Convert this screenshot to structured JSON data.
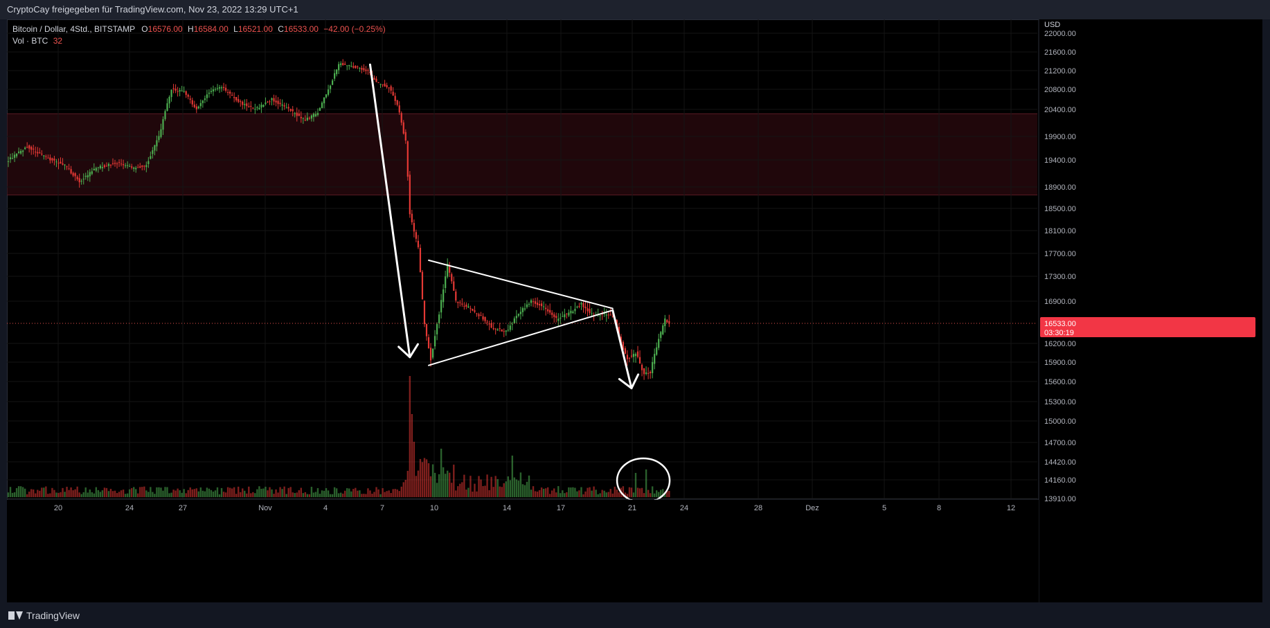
{
  "header": {
    "publish_line": "CryptoCay freigegeben für TradingView.com, Nov 23, 2022 13:29 UTC+1"
  },
  "legend": {
    "symbol": "Bitcoin / Dollar, 4Std., BITSTAMP",
    "open_label": "O",
    "open": "16576.00",
    "high_label": "H",
    "high": "16584.00",
    "low_label": "L",
    "low": "16521.00",
    "close_label": "C",
    "close": "16533.00",
    "change": "−42.00 (−0.25%)",
    "volume_label": "Vol · BTC",
    "volume_value": "32"
  },
  "footer": {
    "brand": "TradingView"
  },
  "colors": {
    "up": "#26a69a",
    "down": "#ef5350",
    "up_candle": "#4caf50",
    "down_candle": "#e53935",
    "zone": "#3b0d14",
    "price_tag": "#f23645",
    "drawing": "#ffffff"
  },
  "chart_data": {
    "type": "candlestick",
    "currency_label": "USD",
    "price_ticks": [
      "22000.00",
      "21600.00",
      "21200.00",
      "20800.00",
      "20400.00",
      "19900.00",
      "19400.00",
      "18900.00",
      "18500.00",
      "18100.00",
      "17700.00",
      "17300.00",
      "16900.00",
      "16200.00",
      "15900.00",
      "15600.00",
      "15300.00",
      "15000.00",
      "14700.00",
      "14420.00",
      "14160.00",
      "13910.00"
    ],
    "time_ticks": [
      "20",
      "24",
      "27",
      "Nov",
      "4",
      "7",
      "10",
      "14",
      "17",
      "21",
      "24",
      "28",
      "Dez",
      "5",
      "8",
      "12"
    ],
    "last_price": "16533.00",
    "countdown": "03:30:19",
    "resistance_zone": {
      "from": 18750,
      "to": 20320
    },
    "anchors": [
      {
        "t": 0,
        "p": 19400
      },
      {
        "t": 9,
        "p": 19680
      },
      {
        "t": 18,
        "p": 19450
      },
      {
        "t": 27,
        "p": 19300
      },
      {
        "t": 34,
        "p": 19000
      },
      {
        "t": 42,
        "p": 19250
      },
      {
        "t": 52,
        "p": 19350
      },
      {
        "t": 60,
        "p": 19250
      },
      {
        "t": 66,
        "p": 19300
      },
      {
        "t": 72,
        "p": 19900
      },
      {
        "t": 78,
        "p": 20800
      },
      {
        "t": 84,
        "p": 20750
      },
      {
        "t": 90,
        "p": 20400
      },
      {
        "t": 96,
        "p": 20750
      },
      {
        "t": 102,
        "p": 20850
      },
      {
        "t": 110,
        "p": 20550
      },
      {
        "t": 118,
        "p": 20400
      },
      {
        "t": 126,
        "p": 20600
      },
      {
        "t": 134,
        "p": 20400
      },
      {
        "t": 142,
        "p": 20200
      },
      {
        "t": 148,
        "p": 20350
      },
      {
        "t": 154,
        "p": 20900
      },
      {
        "t": 158,
        "p": 21350
      },
      {
        "t": 164,
        "p": 21300
      },
      {
        "t": 172,
        "p": 21200
      },
      {
        "t": 176,
        "p": 20950
      },
      {
        "t": 182,
        "p": 20850
      },
      {
        "t": 186,
        "p": 20500
      },
      {
        "t": 190,
        "p": 19800
      },
      {
        "t": 192,
        "p": 18400
      },
      {
        "t": 196,
        "p": 17800
      },
      {
        "t": 199,
        "p": 16500
      },
      {
        "t": 202,
        "p": 15950
      },
      {
        "t": 206,
        "p": 16700
      },
      {
        "t": 210,
        "p": 17500
      },
      {
        "t": 214,
        "p": 16900
      },
      {
        "t": 220,
        "p": 16800
      },
      {
        "t": 226,
        "p": 16650
      },
      {
        "t": 232,
        "p": 16450
      },
      {
        "t": 238,
        "p": 16400
      },
      {
        "t": 244,
        "p": 16700
      },
      {
        "t": 250,
        "p": 16900
      },
      {
        "t": 256,
        "p": 16800
      },
      {
        "t": 262,
        "p": 16600
      },
      {
        "t": 268,
        "p": 16700
      },
      {
        "t": 274,
        "p": 16850
      },
      {
        "t": 280,
        "p": 16650
      },
      {
        "t": 286,
        "p": 16700
      },
      {
        "t": 290,
        "p": 16600
      },
      {
        "t": 293,
        "p": 16200
      },
      {
        "t": 296,
        "p": 15950
      },
      {
        "t": 300,
        "p": 16050
      },
      {
        "t": 304,
        "p": 15700
      },
      {
        "t": 307,
        "p": 15750
      },
      {
        "t": 310,
        "p": 16150
      },
      {
        "t": 314,
        "p": 16600
      },
      {
        "t": 316,
        "p": 16533
      }
    ],
    "volume_spikes": [
      {
        "t": 190,
        "v": 25
      },
      {
        "t": 191,
        "v": 38
      },
      {
        "t": 192,
        "v": 175
      },
      {
        "t": 193,
        "v": 120
      },
      {
        "t": 194,
        "v": 80
      },
      {
        "t": 207,
        "v": 70
      },
      {
        "t": 241,
        "v": 60
      },
      {
        "t": 305,
        "v": 40
      },
      {
        "t": 300,
        "v": 35
      }
    ],
    "drawings": [
      {
        "type": "arrow",
        "from": {
          "t": 173,
          "p": 21330
        },
        "to": {
          "t": 192,
          "p": 15980
        }
      },
      {
        "type": "trendline",
        "from": {
          "t": 201,
          "p": 17580
        },
        "to": {
          "t": 289,
          "p": 16780
        }
      },
      {
        "type": "trendline",
        "from": {
          "t": 201,
          "p": 15850
        },
        "to": {
          "t": 289,
          "p": 16750
        }
      },
      {
        "type": "arrow",
        "from": {
          "t": 289,
          "p": 16750
        },
        "to": {
          "t": 298,
          "p": 15500
        }
      }
    ],
    "volume_highlight": {
      "t": 303,
      "v": 30
    }
  }
}
